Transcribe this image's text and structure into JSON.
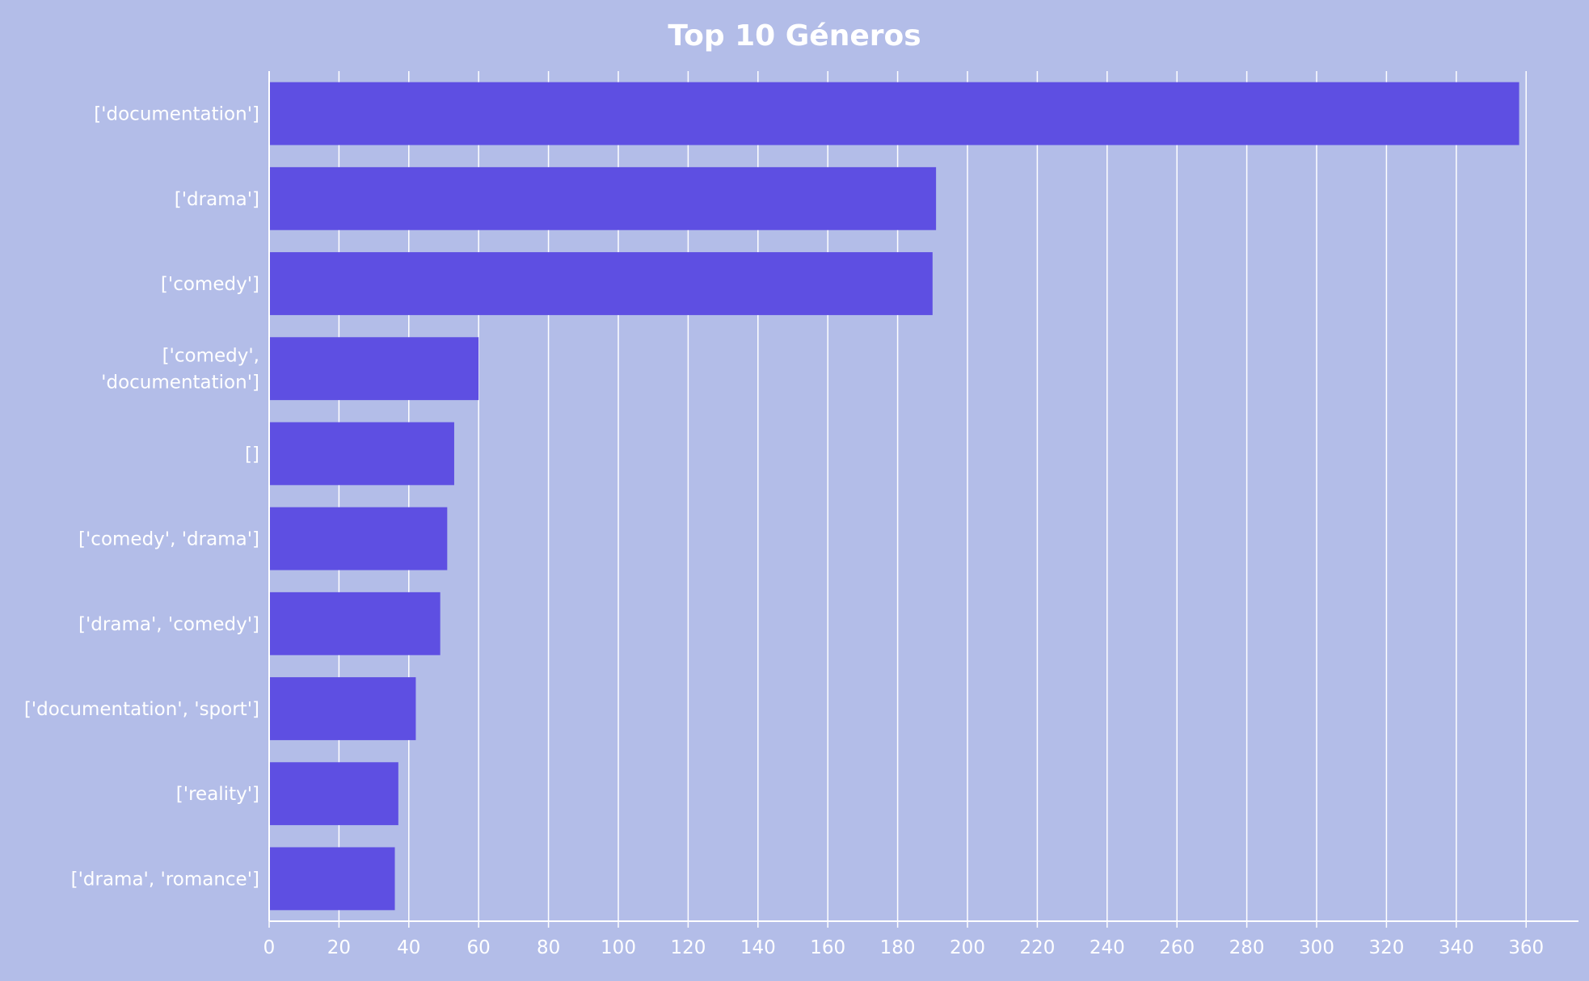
{
  "chart_data": {
    "type": "bar",
    "orientation": "horizontal",
    "title": "Top 10 Géneros",
    "xlabel": "",
    "ylabel": "",
    "categories": [
      [
        "['documentation']"
      ],
      [
        "['drama']"
      ],
      [
        "['comedy']"
      ],
      [
        "['comedy',",
        "'documentation']"
      ],
      [
        "[]"
      ],
      [
        "['comedy', 'drama']"
      ],
      [
        "['drama', 'comedy']"
      ],
      [
        "['documentation', 'sport']"
      ],
      [
        "['reality']"
      ],
      [
        "['drama', 'romance']"
      ]
    ],
    "values": [
      358,
      191,
      190,
      60,
      53,
      51,
      49,
      42,
      37,
      36
    ],
    "xlim": [
      0,
      375
    ],
    "xticks": [
      0,
      20,
      40,
      60,
      80,
      100,
      120,
      140,
      160,
      180,
      200,
      220,
      240,
      260,
      280,
      300,
      320,
      340,
      360
    ],
    "grid": true,
    "legend": "none",
    "colors": {
      "background": "#b3bde8",
      "bar": "#5e4fe2",
      "grid": "#ffffff",
      "text": "#ffffff"
    }
  }
}
